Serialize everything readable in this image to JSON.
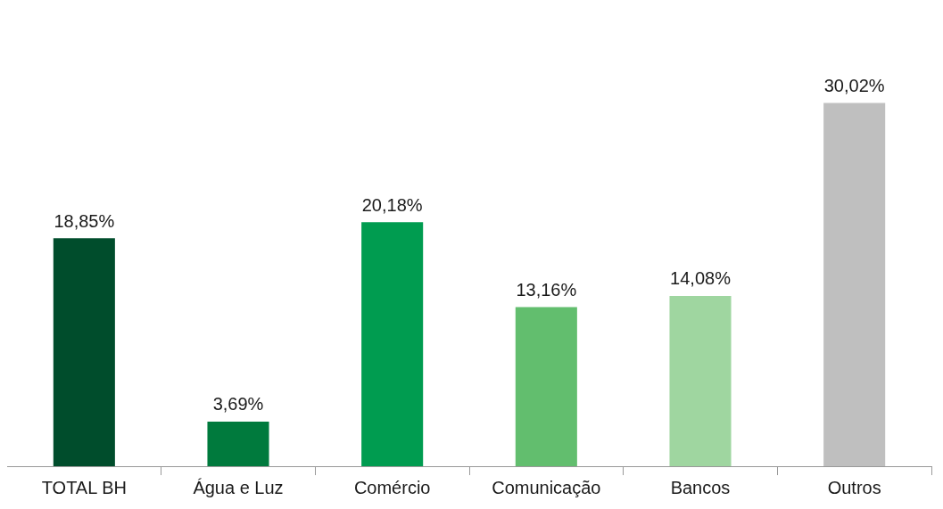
{
  "chart_data": {
    "type": "bar",
    "categories": [
      "TOTAL BH",
      "Água e Luz",
      "Comércio",
      "Comunicação",
      "Bancos",
      "Outros"
    ],
    "values": [
      18.85,
      3.69,
      20.18,
      13.16,
      14.08,
      30.02
    ],
    "colors": [
      "#004d2c",
      "#007a3d",
      "#009c50",
      "#62be6e",
      "#9fd6a0",
      "#bfbfbf"
    ],
    "value_labels": [
      "18,85%",
      "3,69%",
      "20,18%",
      "13,16%",
      "14,08%",
      "30,02%"
    ],
    "grid": false,
    "legend": false
  }
}
